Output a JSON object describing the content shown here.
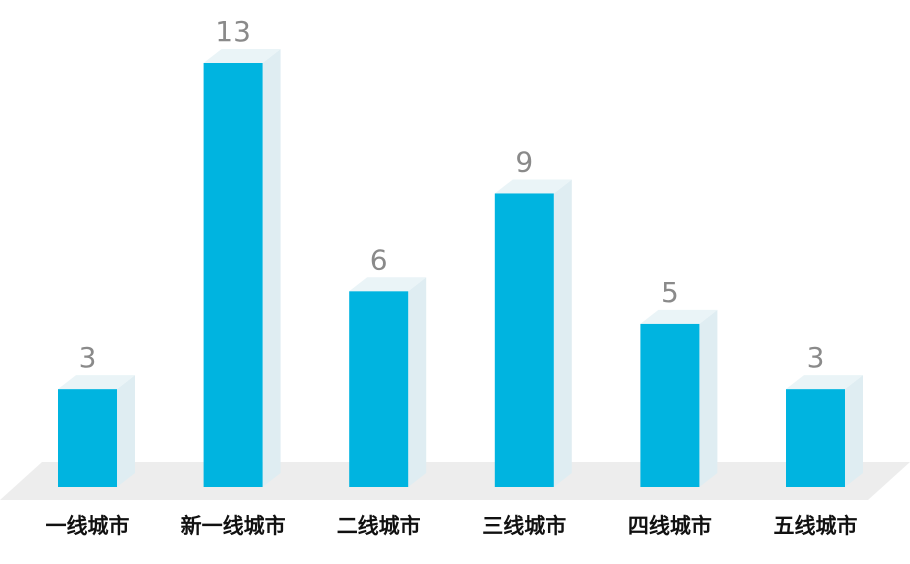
{
  "chart_data": {
    "type": "bar3d",
    "categories": [
      "一线城市",
      "新一线城市",
      "二线城市",
      "三线城市",
      "四线城市",
      "五线城市"
    ],
    "values": [
      3,
      13,
      6,
      9,
      5,
      3
    ],
    "color": "#00b4e0"
  }
}
